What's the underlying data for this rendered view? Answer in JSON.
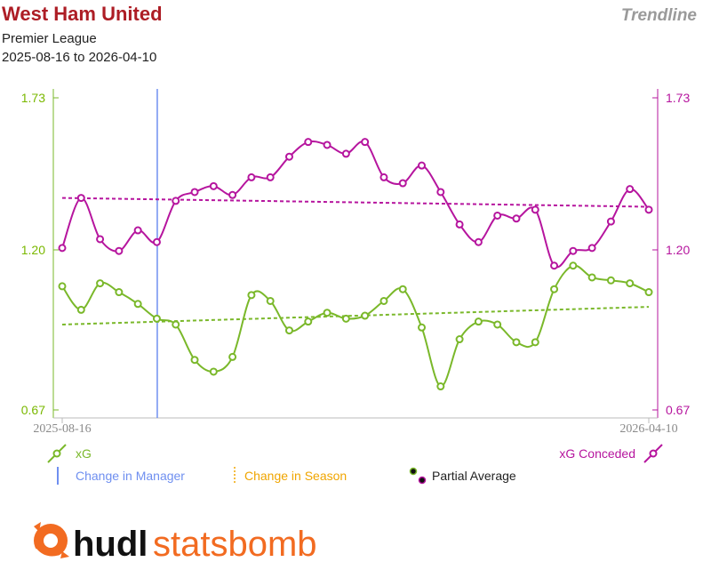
{
  "header": {
    "title": "West Ham United",
    "subtitle": "Premier League",
    "date_range": "2025-08-16 to 2026-04-10",
    "tag": "Trendline"
  },
  "brand": {
    "hudl": "hudl",
    "statsbomb": "statsbomb"
  },
  "colors": {
    "xg": "#7ab82a",
    "xg_conceded": "#b6159e",
    "manager": "#6f8ff0",
    "season": "#f0a500",
    "title": "#ad1d25",
    "logo": "#f26b21"
  },
  "legend": {
    "xg": "xG",
    "xg_conceded": "xG Conceded",
    "manager": "Change in Manager",
    "season": "Change in Season",
    "partial": "Partial Average"
  },
  "chart_data": {
    "type": "line",
    "x_start": "2025-08-16",
    "x_end": "2026-04-10",
    "x_tick_labels": [
      "2025-08-16",
      "2026-04-10"
    ],
    "y_tick_labels": [
      "1.73",
      "1.20",
      "0.67"
    ],
    "ylim": [
      0.67,
      1.73
    ],
    "manager_change_match_index": 5,
    "series": [
      {
        "name": "xG",
        "axis": "left",
        "values": [
          1.09,
          1.01,
          1.1,
          1.07,
          1.03,
          0.98,
          0.96,
          0.84,
          0.8,
          0.85,
          1.06,
          1.04,
          0.94,
          0.97,
          1.0,
          0.98,
          0.99,
          1.04,
          1.08,
          0.95,
          0.75,
          0.91,
          0.97,
          0.96,
          0.9,
          0.9,
          1.08,
          1.16,
          1.12,
          1.11,
          1.1,
          1.07
        ],
        "trend": [
          0.96,
          1.02
        ]
      },
      {
        "name": "xG Conceded",
        "axis": "right",
        "values": [
          1.22,
          1.39,
          1.25,
          1.21,
          1.28,
          1.24,
          1.38,
          1.41,
          1.43,
          1.4,
          1.46,
          1.46,
          1.53,
          1.58,
          1.57,
          1.54,
          1.58,
          1.46,
          1.44,
          1.5,
          1.41,
          1.3,
          1.24,
          1.33,
          1.32,
          1.35,
          1.16,
          1.21,
          1.22,
          1.31,
          1.42,
          1.35
        ],
        "trend": [
          1.39,
          1.36
        ]
      }
    ]
  }
}
